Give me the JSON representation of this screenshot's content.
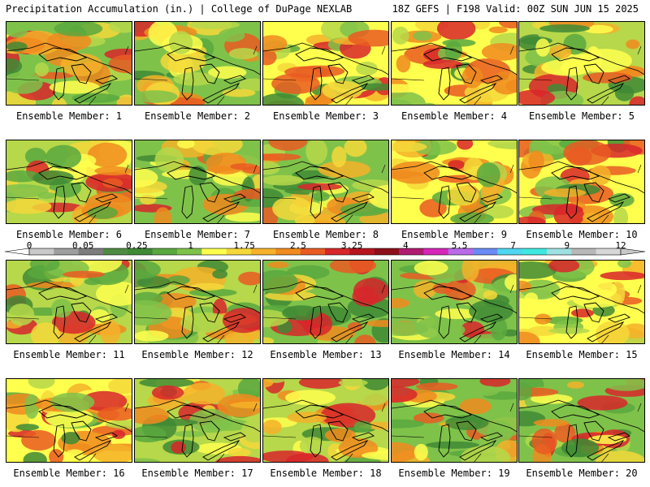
{
  "header": {
    "left": "Precipitation Accumulation (in.) | College of DuPage NEXLAB",
    "right": "18Z GEFS | F198 Valid: 00Z SUN JUN 15 2025"
  },
  "colorbar": {
    "tick_labels": [
      "0",
      "0.05",
      "0.25",
      "1",
      "1.75",
      "2.5",
      "3.25",
      "4",
      "5.5",
      "7",
      "9",
      "12"
    ],
    "colors": [
      "#c9c9c9",
      "#9e9e9e",
      "#7d7d7d",
      "#4f8c43",
      "#3f8a35",
      "#59a83e",
      "#7fc24a",
      "#ffff4d",
      "#f4d83a",
      "#f5b129",
      "#f08b1f",
      "#e95a22",
      "#d8262a",
      "#b8141e",
      "#8c0f1a",
      "#b01a70",
      "#d626b8",
      "#b86ae8",
      "#6a8bf5",
      "#4fd6f0",
      "#3ee8e0",
      "#9fe0e0",
      "#b8b8b8",
      "#d7d7d7"
    ]
  },
  "members": [
    {
      "label": "Ensemble Member: 1"
    },
    {
      "label": "Ensemble Member: 2"
    },
    {
      "label": "Ensemble Member: 3"
    },
    {
      "label": "Ensemble Member: 4"
    },
    {
      "label": "Ensemble Member: 5"
    },
    {
      "label": "Ensemble Member: 6"
    },
    {
      "label": "Ensemble Member: 7"
    },
    {
      "label": "Ensemble Member: 8"
    },
    {
      "label": "Ensemble Member: 9"
    },
    {
      "label": "Ensemble Member: 10"
    },
    {
      "label": "Ensemble Member: 11"
    },
    {
      "label": "Ensemble Member: 12"
    },
    {
      "label": "Ensemble Member: 13"
    },
    {
      "label": "Ensemble Member: 14"
    },
    {
      "label": "Ensemble Member: 15"
    },
    {
      "label": "Ensemble Member: 16"
    },
    {
      "label": "Ensemble Member: 17"
    },
    {
      "label": "Ensemble Member: 18"
    },
    {
      "label": "Ensemble Member: 19"
    },
    {
      "label": "Ensemble Member: 20"
    }
  ]
}
